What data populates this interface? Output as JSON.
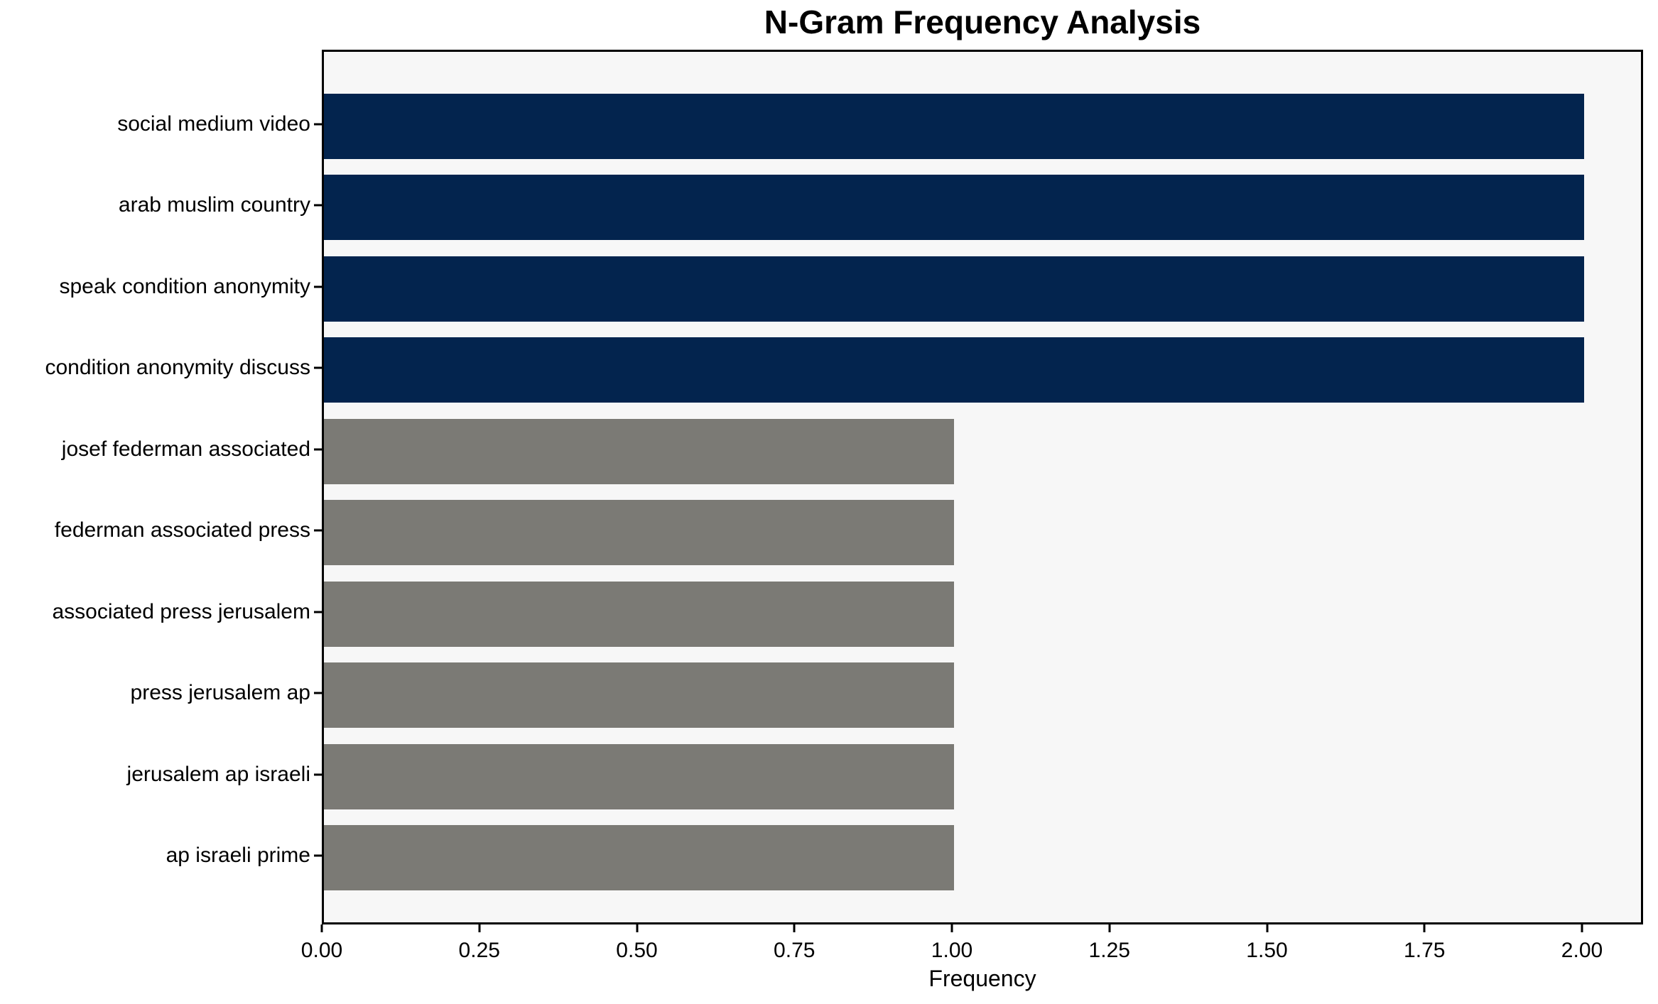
{
  "chart_data": {
    "type": "bar",
    "orientation": "horizontal",
    "title": "N-Gram Frequency Analysis",
    "xlabel": "Frequency",
    "ylabel": "",
    "categories": [
      "social medium video",
      "arab muslim country",
      "speak condition anonymity",
      "condition anonymity discuss",
      "josef federman associated",
      "federman associated press",
      "associated press jerusalem",
      "press jerusalem ap",
      "jerusalem ap israeli",
      "ap israeli prime"
    ],
    "values": [
      2,
      2,
      2,
      2,
      1,
      1,
      1,
      1,
      1,
      1
    ],
    "bar_colors": [
      "#03244e",
      "#03244e",
      "#03244e",
      "#03244e",
      "#7b7a75",
      "#7b7a75",
      "#7b7a75",
      "#7b7a75",
      "#7b7a75",
      "#7b7a75"
    ],
    "x_ticks": [
      "0.00",
      "0.25",
      "0.50",
      "0.75",
      "1.00",
      "1.25",
      "1.50",
      "1.75",
      "2.00"
    ],
    "x_tick_values": [
      0,
      0.25,
      0.5,
      0.75,
      1.0,
      1.25,
      1.5,
      1.75,
      2.0
    ],
    "xlim": [
      0,
      2.1
    ],
    "grid": false,
    "legend": null,
    "colors": {
      "highlight_bar": "#03244e",
      "regular_bar": "#7b7a75",
      "plot_background": "#f7f7f7",
      "figure_background": "#ffffff",
      "spine": "#000000"
    }
  }
}
